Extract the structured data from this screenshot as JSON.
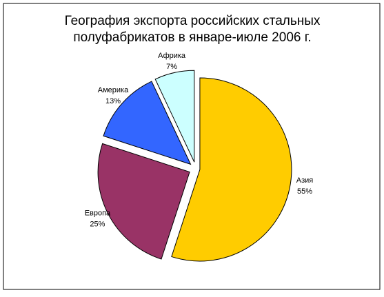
{
  "chart_data": {
    "type": "pie",
    "title": [
      "География экспорта российских стальных",
      "полуфабрикатов в январе-июле 2006 г."
    ],
    "categories": [
      "Азия",
      "Европа",
      "Америка",
      "Африка"
    ],
    "values": [
      55,
      25,
      13,
      7
    ],
    "value_labels": [
      "55%",
      "25%",
      "13%",
      "7%"
    ],
    "colors": [
      "#ffcc00",
      "#993366",
      "#3366ff",
      "#ccffff"
    ],
    "exploded": true
  }
}
